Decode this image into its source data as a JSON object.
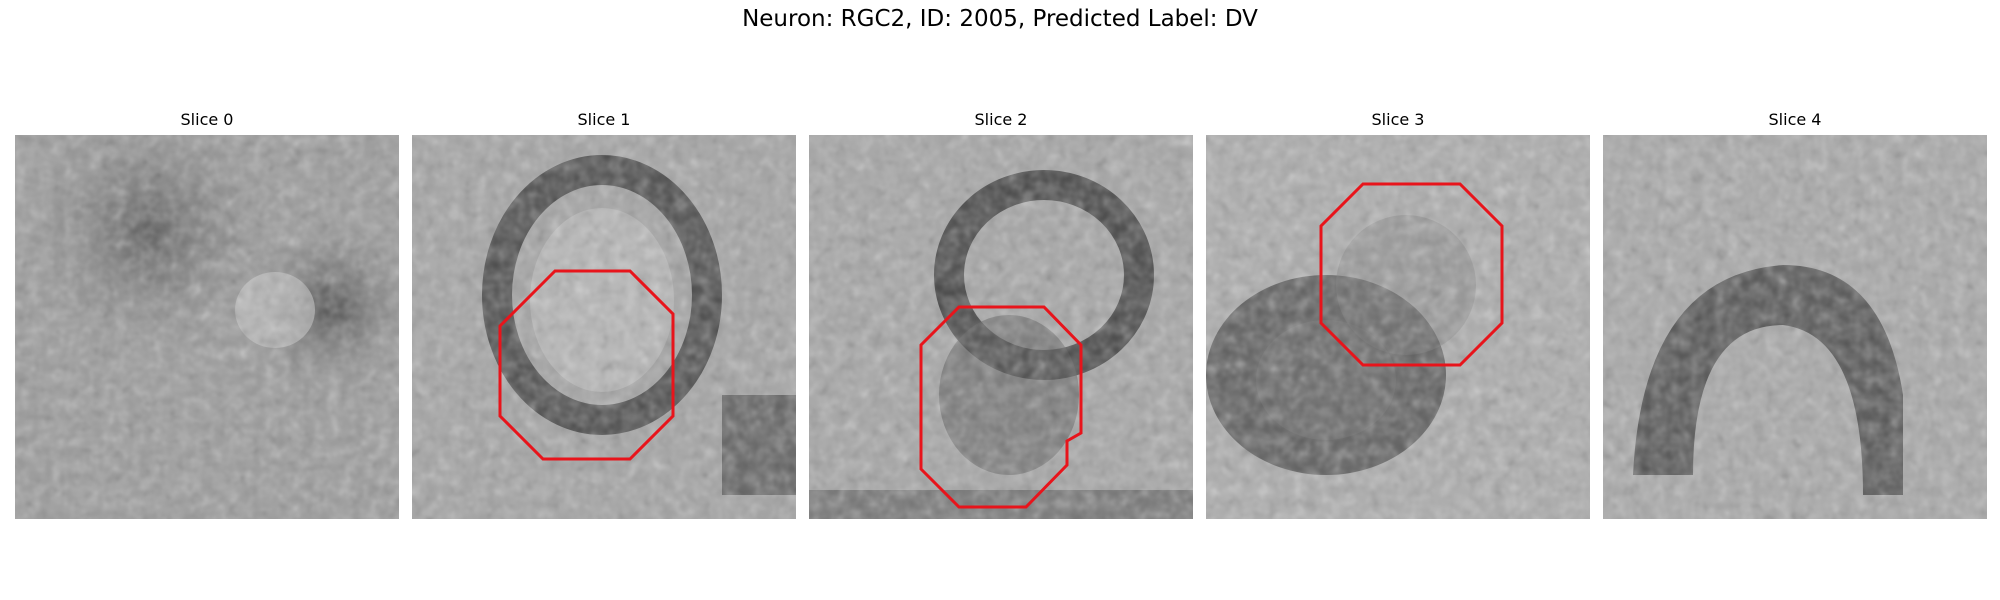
{
  "figure": {
    "title": "Neuron: RGC2, ID: 2005, Predicted Label: DV"
  },
  "panels": [
    {
      "label": "Slice 0",
      "roi": false
    },
    {
      "label": "Slice 1",
      "roi": true
    },
    {
      "label": "Slice 2",
      "roi": true
    },
    {
      "label": "Slice 3",
      "roi": true
    },
    {
      "label": "Slice 4",
      "roi": false
    }
  ],
  "colors": {
    "roi_outline": "#e8141b"
  },
  "image_style": "grayscale pixelated microscopy slice"
}
